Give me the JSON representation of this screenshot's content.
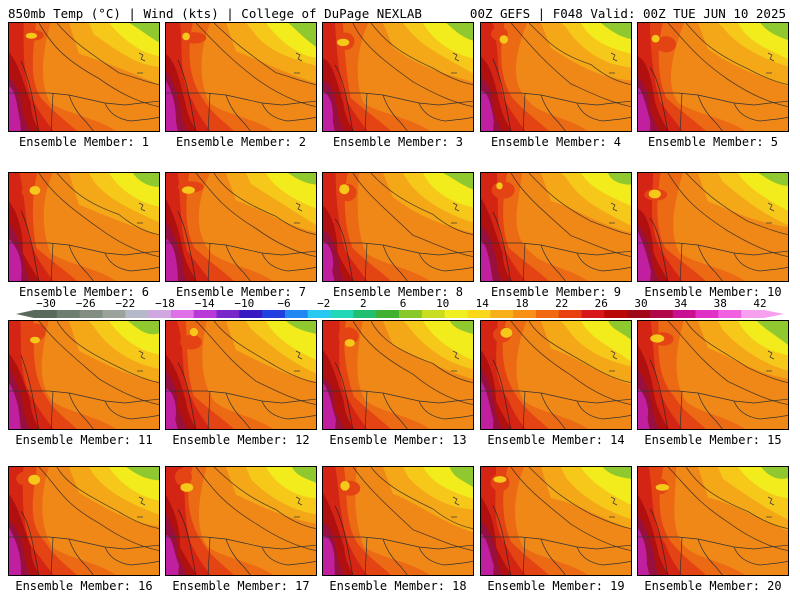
{
  "header": {
    "left": "850mb Temp (°C) | Wind (kts) | College of DuPage NEXLAB",
    "right": "00Z GEFS | F048 Valid: 00Z TUE JUN 10 2025"
  },
  "members": [
    "Ensemble Member: 1",
    "Ensemble Member: 2",
    "Ensemble Member: 3",
    "Ensemble Member: 4",
    "Ensemble Member: 5",
    "Ensemble Member: 6",
    "Ensemble Member: 7",
    "Ensemble Member: 8",
    "Ensemble Member: 9",
    "Ensemble Member: 10",
    "Ensemble Member: 11",
    "Ensemble Member: 12",
    "Ensemble Member: 13",
    "Ensemble Member: 14",
    "Ensemble Member: 15",
    "Ensemble Member: 16",
    "Ensemble Member: 17",
    "Ensemble Member: 18",
    "Ensemble Member: 19",
    "Ensemble Member: 20"
  ],
  "colorbar": {
    "ticks": [
      "−30",
      "−26",
      "−22",
      "−18",
      "−14",
      "−10",
      "−6",
      "−2",
      "2",
      "6",
      "10",
      "14",
      "18",
      "22",
      "26",
      "30",
      "34",
      "38",
      "42"
    ],
    "colors": [
      "#5a6a5a",
      "#6e7e6e",
      "#828e82",
      "#9aa29a",
      "#b4b8c8",
      "#d0a8e0",
      "#e070e8",
      "#b838d8",
      "#7828c8",
      "#3818c0",
      "#2040e0",
      "#2088f0",
      "#28c8f0",
      "#20d8b8",
      "#20c070",
      "#40b030",
      "#88c828",
      "#c8dc20",
      "#f0f020",
      "#f8d818",
      "#f8b018",
      "#f89018",
      "#f06810",
      "#e84010",
      "#d81818",
      "#b80808",
      "#a00818",
      "#b00848",
      "#c81090",
      "#e030c8",
      "#f060e0",
      "#f8a0f0"
    ]
  },
  "map_palette": {
    "green": "#90c830",
    "yellow": "#f2ec1c",
    "gold": "#f6c81a",
    "orange1": "#f4a818",
    "orange2": "#f08818",
    "orange3": "#ec6a14",
    "red1": "#e44414",
    "red2": "#d42414",
    "darkred": "#b01010",
    "maroon": "#981040",
    "magenta": "#c020a0",
    "purple": "#d840c8"
  }
}
